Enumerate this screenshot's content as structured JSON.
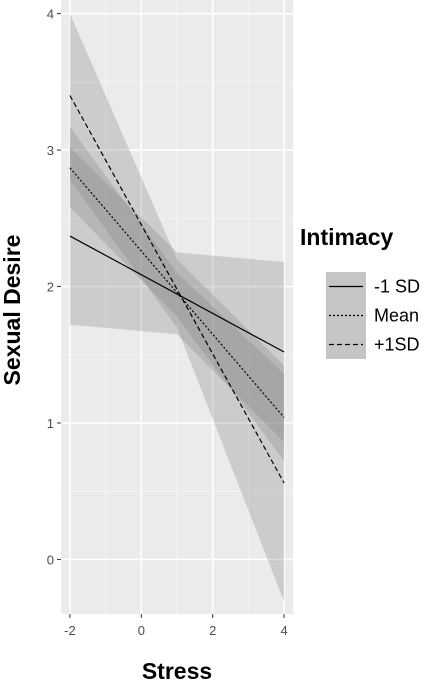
{
  "chart_data": {
    "type": "line",
    "title": "",
    "xlabel": "Stress",
    "ylabel": "Sexual Desire",
    "xlim": [
      -2.25,
      4.25
    ],
    "ylim": [
      -0.4,
      4.1
    ],
    "x_ticks": [
      -2,
      0,
      2,
      4
    ],
    "y_ticks": [
      0,
      1,
      2,
      3,
      4
    ],
    "grid": true,
    "legend_position": "right",
    "legend_title": "Intimacy",
    "colors": {
      "panel_background": "#ebebeb",
      "grid_major": "#ffffff",
      "grid_minor": "#f4f4f4",
      "line": "#000000",
      "ribbon": "#7f7f7f"
    },
    "series": [
      {
        "name": "-1 SD",
        "linestyle": "solid",
        "x": [
          -2,
          4
        ],
        "y": [
          2.37,
          1.52
        ],
        "ribbon": {
          "x": [
            -2,
            1,
            4
          ],
          "lower": [
            1.72,
            1.65,
            0.86
          ],
          "upper": [
            3.02,
            2.25,
            2.18
          ]
        }
      },
      {
        "name": "Mean",
        "linestyle": "dotted",
        "x": [
          -2,
          4
        ],
        "y": [
          2.87,
          1.04
        ],
        "ribbon": {
          "x": [
            -2,
            1,
            4
          ],
          "lower": [
            2.58,
            1.78,
            0.72
          ],
          "upper": [
            3.17,
            2.1,
            1.36
          ]
        }
      },
      {
        "name": "+1SD",
        "linestyle": "dashed",
        "x": [
          -2,
          4
        ],
        "y": [
          3.4,
          0.56
        ],
        "ribbon": {
          "x": [
            -2,
            1,
            4
          ],
          "lower": [
            2.78,
            1.7,
            -0.31
          ],
          "upper": [
            4.0,
            2.2,
            1.42
          ]
        }
      }
    ]
  }
}
